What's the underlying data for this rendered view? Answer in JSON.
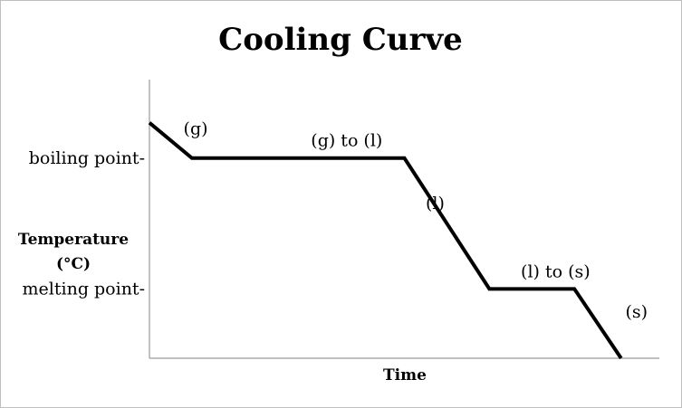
{
  "chart_data": {
    "type": "line",
    "title": "Cooling Curve",
    "xlabel": "Time",
    "ylabel_lines": [
      "Temperature",
      "(°C)"
    ],
    "y_ticks": [
      {
        "label": "boiling point-",
        "value": 100
      },
      {
        "label": "melting point-",
        "value": 0
      }
    ],
    "xlim": [
      0,
      600
    ],
    "ylim": [
      -53,
      160
    ],
    "grid": false,
    "series": [
      {
        "points": [
          [
            0,
            127
          ],
          [
            50,
            100
          ],
          [
            300,
            100
          ],
          [
            400,
            0
          ],
          [
            500,
            0
          ],
          [
            555,
            -53
          ]
        ]
      }
    ],
    "annotations": [
      {
        "text": "(g)",
        "x": 40,
        "y": 118
      },
      {
        "text": "(g) to (l)",
        "x": 190,
        "y": 109
      },
      {
        "text": "(l)",
        "x": 325,
        "y": 61
      },
      {
        "text": "(l) to (s)",
        "x": 437,
        "y": 9
      },
      {
        "text": "(s)",
        "x": 560,
        "y": -22
      }
    ]
  }
}
